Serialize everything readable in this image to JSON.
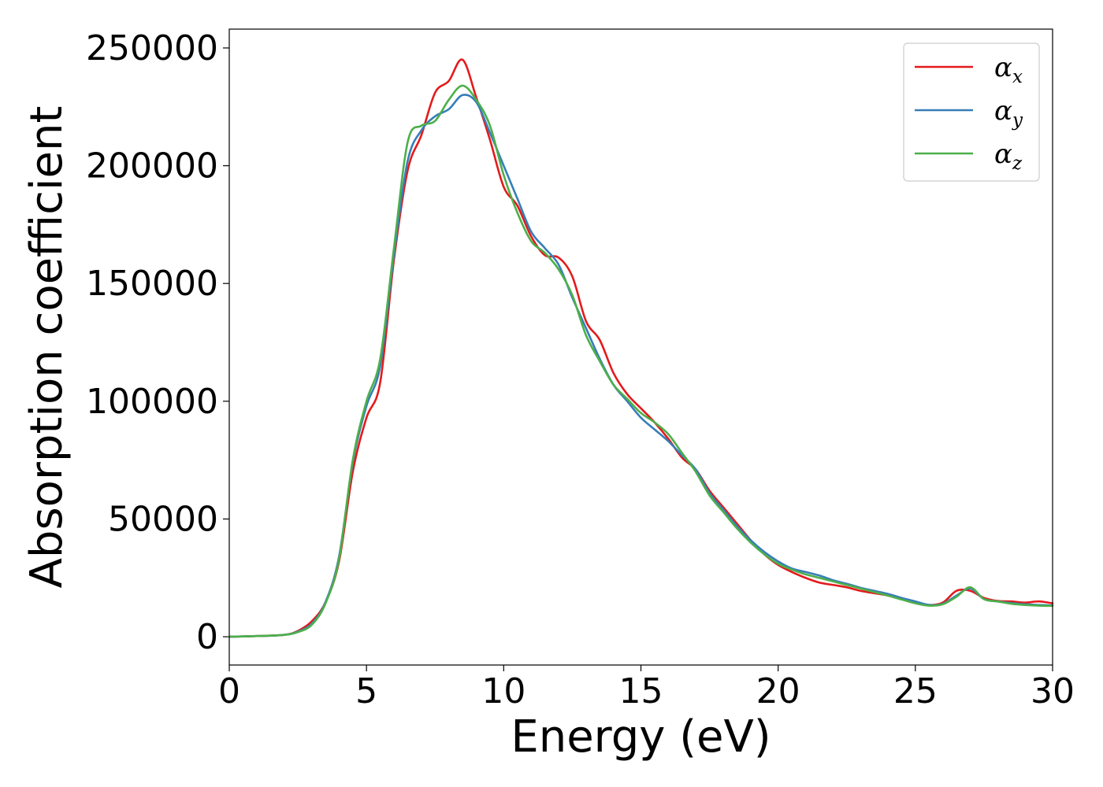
{
  "chart_data": {
    "type": "line",
    "title": "",
    "xlabel": "Energy (eV)",
    "ylabel": "Absorption coefficient",
    "xlim": [
      0,
      30
    ],
    "ylim": [
      -12000,
      258000
    ],
    "xticks": [
      0,
      5,
      10,
      15,
      20,
      25,
      30
    ],
    "xtick_labels": [
      "0",
      "5",
      "10",
      "15",
      "20",
      "25",
      "30"
    ],
    "yticks": [
      0,
      50000,
      100000,
      150000,
      200000,
      250000
    ],
    "ytick_labels": [
      "0",
      "50000",
      "100000",
      "150000",
      "200000",
      "250000"
    ],
    "grid": false,
    "legend_position": "top-right",
    "x": [
      0,
      1,
      2,
      2.5,
      3,
      3.5,
      4,
      4.5,
      5,
      5.5,
      6,
      6.5,
      7,
      7.5,
      8,
      8.5,
      9,
      9.5,
      10,
      10.5,
      11,
      11.5,
      12,
      12.5,
      13,
      13.5,
      14,
      14.5,
      15,
      15.5,
      16,
      16.5,
      17,
      17.5,
      18,
      18.5,
      19,
      19.5,
      20,
      20.5,
      21,
      21.5,
      22,
      22.5,
      23,
      23.5,
      24,
      24.5,
      25,
      25.5,
      26,
      26.5,
      27,
      27.5,
      28,
      28.5,
      29,
      29.5,
      30
    ],
    "series": [
      {
        "name": "α",
        "subscript": "x",
        "color": "#e41a1c",
        "values": [
          0,
          300,
          800,
          2500,
          6500,
          14500,
          32000,
          70000,
          93000,
          108000,
          160000,
          198000,
          213000,
          231000,
          236000,
          245000,
          229000,
          211000,
          191000,
          183000,
          170000,
          162000,
          161000,
          153000,
          134000,
          126000,
          112000,
          103000,
          97000,
          91000,
          84000,
          76000,
          71000,
          62000,
          55000,
          48000,
          41000,
          35000,
          30500,
          27500,
          25000,
          23000,
          22000,
          21000,
          19500,
          18500,
          17500,
          16000,
          14800,
          13500,
          14500,
          19500,
          19500,
          16500,
          15200,
          15000,
          14500,
          15000,
          14200
        ]
      },
      {
        "name": "α",
        "subscript": "y",
        "color": "#377eb8",
        "values": [
          0,
          300,
          800,
          2200,
          5500,
          14500,
          34000,
          74000,
          98000,
          115000,
          162000,
          202000,
          215000,
          221000,
          224000,
          230000,
          227000,
          214000,
          200000,
          186000,
          172000,
          165000,
          158000,
          144000,
          131000,
          118000,
          107000,
          100000,
          93000,
          88000,
          83000,
          77000,
          71000,
          61000,
          54000,
          47000,
          41000,
          36000,
          32000,
          29000,
          27500,
          26000,
          24000,
          22500,
          20800,
          19500,
          18200,
          16500,
          15000,
          13500,
          14000,
          17500,
          20500,
          16000,
          15000,
          14300,
          13800,
          13500,
          13300
        ]
      },
      {
        "name": "α",
        "subscript": "z",
        "color": "#4daf4a",
        "values": [
          0,
          300,
          800,
          2000,
          5000,
          14000,
          33000,
          75000,
          100000,
          118000,
          165000,
          210000,
          217000,
          219000,
          228000,
          234000,
          228000,
          217000,
          196000,
          180000,
          168000,
          163000,
          156000,
          145000,
          128000,
          117000,
          107000,
          101000,
          95000,
          91000,
          86000,
          78000,
          70000,
          60000,
          53000,
          46000,
          40000,
          35000,
          31000,
          28500,
          26500,
          25000,
          23500,
          22000,
          20500,
          19000,
          17500,
          15800,
          14200,
          13200,
          13800,
          17000,
          21000,
          16000,
          15000,
          14000,
          13500,
          13200,
          13100
        ]
      }
    ]
  }
}
